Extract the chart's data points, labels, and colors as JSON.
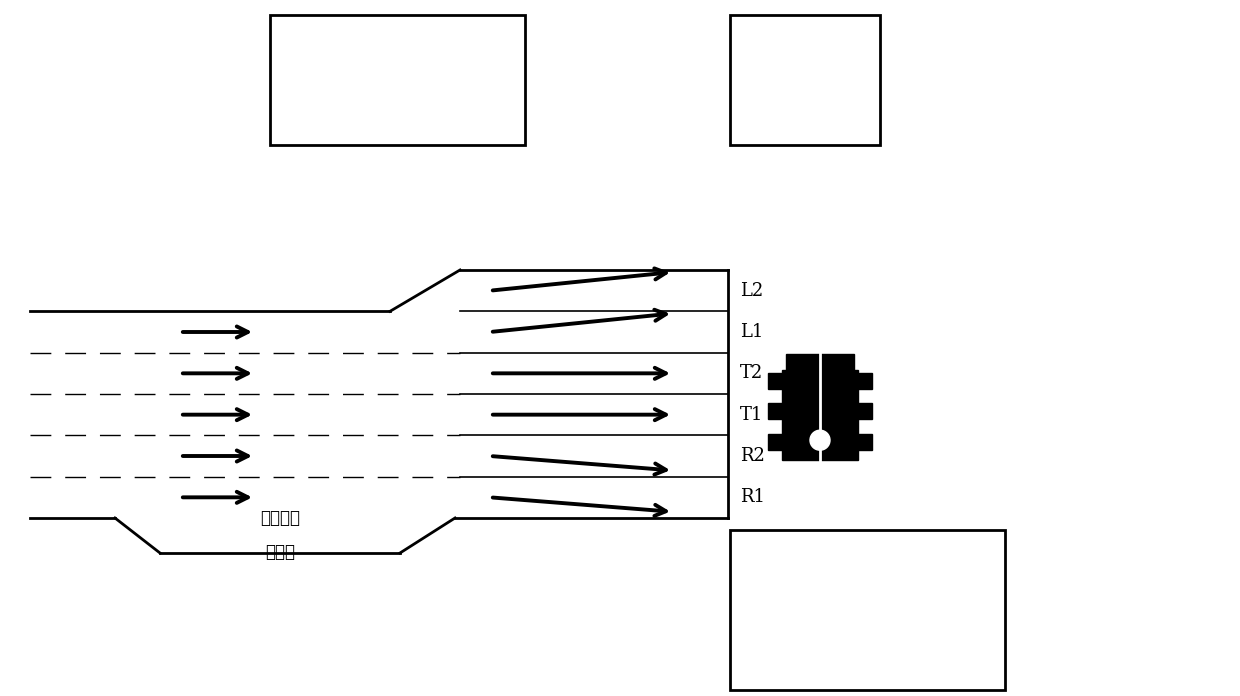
{
  "bg_color": "#ffffff",
  "line_color": "#000000",
  "lw_main": 2.0,
  "lw_thin": 1.2,
  "lane_labels": [
    "L2",
    "L1",
    "T2",
    "T1",
    "R2",
    "R1"
  ],
  "bus_bay_text_line1": "公交港湾",
  "bus_bay_text_line2": "停靠站",
  "fig_w": 12.4,
  "fig_h": 6.96,
  "dpi": 100
}
